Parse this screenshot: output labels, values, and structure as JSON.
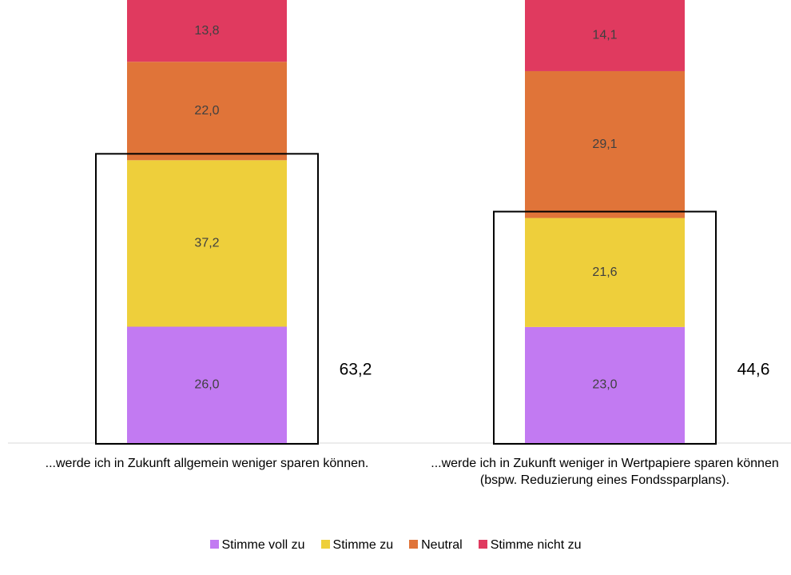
{
  "chart_data": {
    "type": "stacked_bar_100",
    "categories": [
      "...werde ich in Zukunft allgemein weniger sparen können.",
      "...werde ich in Zukunft weniger in Wertpapiere sparen können (bspw. Reduzierung eines Fondssparplans)."
    ],
    "series": [
      {
        "name": "Stimme voll zu",
        "color": "#c27af2",
        "values": [
          26.0,
          23.0
        ],
        "value_labels": [
          "26,0",
          "23,0"
        ]
      },
      {
        "name": "Stimme zu",
        "color": "#eecf3b",
        "values": [
          37.2,
          21.6
        ],
        "value_labels": [
          "37,2",
          "21,6"
        ]
      },
      {
        "name": "Neutral",
        "color": "#e07439",
        "values": [
          22.0,
          29.1
        ],
        "value_labels": [
          "22,0",
          "29,1"
        ]
      },
      {
        "name": "Stimme nicht zu",
        "color": "#e03a5f",
        "values": [
          13.8,
          14.1
        ],
        "value_labels": [
          "13,8",
          "14,1"
        ]
      }
    ],
    "totals": {
      "values": [
        63.2,
        44.6
      ],
      "value_labels": [
        "63,2",
        "44,6"
      ]
    },
    "legend": "bottom"
  }
}
